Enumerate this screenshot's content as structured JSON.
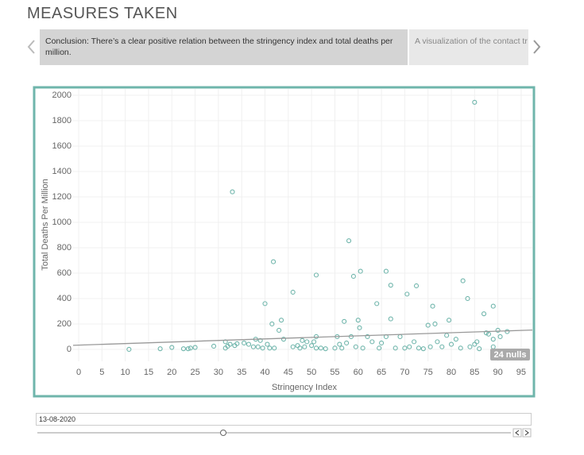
{
  "header": {
    "title": "MEASURES TAKEN"
  },
  "carousel": {
    "items": [
      "Conclusion: There’s a clear positive relation between the stringency index and total deaths per million.",
      "A visualization of the contact tr"
    ]
  },
  "chart_data": {
    "type": "scatter",
    "x_label": "Stringency Index",
    "y_label": "Total Deaths Per Million",
    "color": "#6fb5ab",
    "x": [
      10.8,
      17.5,
      20,
      22.5,
      23.5,
      24,
      25,
      29,
      31.5,
      31.5,
      32,
      32.5,
      33,
      33.5,
      34,
      35.5,
      36.5,
      37.5,
      38,
      38.5,
      39,
      39.5,
      40,
      40.5,
      41,
      41.5,
      41.8,
      42,
      43,
      43.5,
      44,
      46,
      46,
      47,
      47.5,
      48,
      48.5,
      49,
      50,
      50.5,
      51,
      51,
      51,
      52,
      53,
      55,
      55.5,
      56,
      56.5,
      57,
      57.5,
      58,
      58.5,
      59,
      59.5,
      60,
      60.3,
      60.5,
      61,
      62,
      63,
      64,
      64.5,
      65,
      66,
      66,
      67,
      67,
      68,
      69,
      70,
      70.5,
      71,
      72,
      72.5,
      73,
      74,
      75,
      75.5,
      76,
      76.5,
      77,
      78,
      79,
      79.5,
      80,
      81,
      82,
      82.5,
      83.5,
      84,
      85,
      85,
      85.5,
      86,
      87,
      87.5,
      88,
      89,
      89,
      89,
      90,
      90.5,
      92
    ],
    "y": [
      0,
      5,
      15,
      5,
      5,
      10,
      15,
      25,
      10,
      60,
      25,
      40,
      1240,
      30,
      45,
      50,
      40,
      20,
      80,
      20,
      70,
      10,
      360,
      40,
      10,
      200,
      690,
      10,
      150,
      230,
      80,
      450,
      20,
      30,
      10,
      70,
      20,
      60,
      30,
      60,
      585,
      100,
      10,
      10,
      5,
      10,
      100,
      40,
      10,
      220,
      50,
      855,
      100,
      575,
      20,
      230,
      170,
      615,
      10,
      100,
      60,
      360,
      10,
      50,
      615,
      100,
      505,
      240,
      10,
      100,
      10,
      435,
      20,
      60,
      500,
      10,
      5,
      190,
      20,
      340,
      200,
      60,
      20,
      110,
      230,
      40,
      80,
      10,
      540,
      400,
      20,
      1945,
      40,
      60,
      5,
      280,
      130,
      120,
      340,
      80,
      20,
      150,
      100,
      140
    ],
    "xlim": [
      -1.2,
      97.4
    ],
    "ylim": [
      -94,
      2050
    ],
    "xticks": [
      0,
      5,
      10,
      15,
      20,
      25,
      30,
      35,
      40,
      45,
      50,
      55,
      60,
      65,
      70,
      75,
      80,
      85,
      90,
      95
    ],
    "yticks": [
      0,
      200,
      400,
      600,
      800,
      1000,
      1200,
      1400,
      1600,
      1800,
      2000
    ],
    "grid": true,
    "trend_line": {
      "color": "#999999",
      "x": [
        -1.2,
        97.4
      ],
      "y": [
        32,
        152
      ]
    },
    "annotation": "24 nulls"
  },
  "filter": {
    "date": "13-08-2020"
  }
}
